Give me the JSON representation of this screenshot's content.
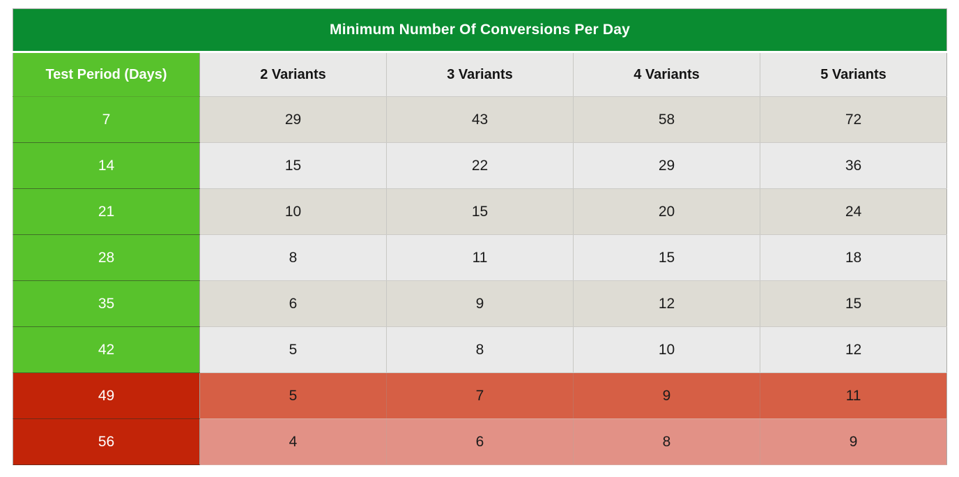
{
  "table": {
    "title": "Minimum Number Of Conversions Per Day",
    "header": {
      "period_label": "Test Period (Days)",
      "variant_labels": [
        "2 Variants",
        "3 Variants",
        "4 Variants",
        "5 Variants"
      ]
    },
    "rows": [
      {
        "period": "7",
        "tone": "green",
        "values": [
          "29",
          "43",
          "58",
          "72"
        ]
      },
      {
        "period": "14",
        "tone": "green",
        "values": [
          "15",
          "22",
          "29",
          "36"
        ]
      },
      {
        "period": "21",
        "tone": "green",
        "values": [
          "10",
          "15",
          "20",
          "24"
        ]
      },
      {
        "period": "28",
        "tone": "green",
        "values": [
          "8",
          "11",
          "15",
          "18"
        ]
      },
      {
        "period": "35",
        "tone": "green",
        "values": [
          "6",
          "9",
          "12",
          "15"
        ]
      },
      {
        "period": "42",
        "tone": "green",
        "values": [
          "5",
          "8",
          "10",
          "12"
        ]
      },
      {
        "period": "49",
        "tone": "red",
        "values": [
          "5",
          "7",
          "9",
          "11"
        ]
      },
      {
        "period": "56",
        "tone": "red",
        "values": [
          "4",
          "6",
          "8",
          "9"
        ]
      }
    ],
    "colors": {
      "title_bg": "#0a8c31",
      "title_text": "#ffffff",
      "header_bg": "#e9e9e8",
      "header_text": "#141414",
      "period_green": "#58c22c",
      "period_red": "#c22408",
      "stripe_dark": "#dedcd4",
      "stripe_light": "#eaeaea",
      "red_row_dark": "#d65f45",
      "red_row_light": "#e29186"
    }
  },
  "chart_data": {
    "type": "table",
    "title": "Minimum Number Of Conversions Per Day",
    "columns": [
      "Test Period (Days)",
      "2 Variants",
      "3 Variants",
      "4 Variants",
      "5 Variants"
    ],
    "rows": [
      [
        7,
        29,
        43,
        58,
        72
      ],
      [
        14,
        15,
        22,
        29,
        36
      ],
      [
        21,
        10,
        15,
        20,
        24
      ],
      [
        28,
        8,
        11,
        15,
        18
      ],
      [
        35,
        6,
        9,
        12,
        15
      ],
      [
        42,
        5,
        8,
        10,
        12
      ],
      [
        49,
        5,
        7,
        9,
        11
      ],
      [
        56,
        4,
        6,
        8,
        9
      ]
    ],
    "row_highlighting": {
      "green_periods": [
        7,
        14,
        21,
        28,
        35,
        42
      ],
      "red_periods": [
        49,
        56
      ]
    },
    "legend_position": "none",
    "grid": true
  }
}
